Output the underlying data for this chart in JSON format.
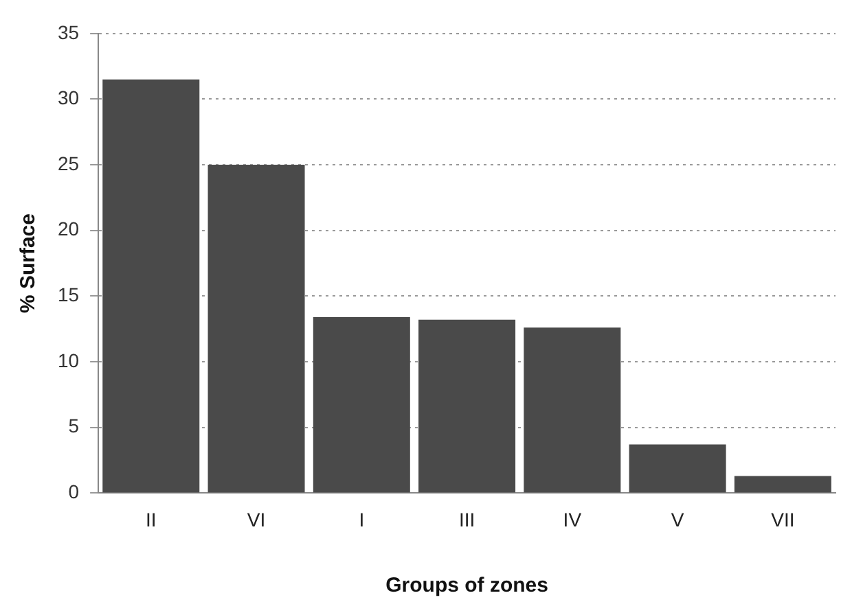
{
  "chart_data": {
    "type": "bar",
    "xlabel": "Groups of zones",
    "ylabel": "% Surface",
    "categories": [
      "II",
      "VI",
      "I",
      "III",
      "IV",
      "V",
      "VII"
    ],
    "values": [
      31.5,
      25,
      13.4,
      13.2,
      12.6,
      3.7,
      1.3
    ],
    "color": "#4a4a4a",
    "ylim": [
      0,
      35
    ],
    "yticks": [
      0,
      5,
      10,
      15,
      20,
      25,
      30,
      35
    ],
    "grid": "y"
  }
}
